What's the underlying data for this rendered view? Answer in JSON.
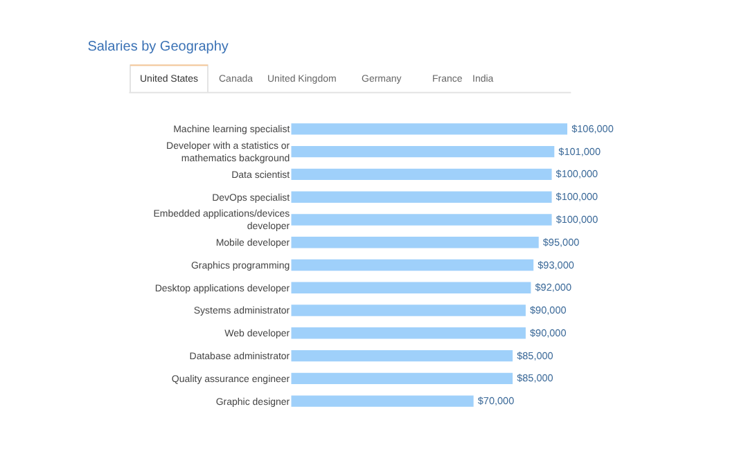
{
  "chart_data": {
    "type": "bar",
    "orientation": "horizontal",
    "title": "Salaries by Geography",
    "annotations": [
      "United States",
      "Canada",
      "United Kingdom",
      "Germany",
      "France",
      "India"
    ],
    "categories": [
      "Machine learning specialist",
      "Developer with a statistics or mathematics background",
      "Data scientist",
      "DevOps specialist",
      "Embedded applications/devices developer",
      "Mobile developer",
      "Graphics programming",
      "Desktop applications developer",
      "Systems administrator",
      "Web developer",
      "Database administrator",
      "Quality assurance engineer",
      "Graphic designer"
    ],
    "values": [
      106000,
      101000,
      100000,
      100000,
      100000,
      95000,
      93000,
      92000,
      90000,
      90000,
      85000,
      85000,
      70000
    ],
    "value_labels": [
      "$106,000",
      "$101,000",
      "$100,000",
      "$100,000",
      "$100,000",
      "$95,000",
      "$93,000",
      "$92,000",
      "$90,000",
      "$90,000",
      "$85,000",
      "$85,000",
      "$70,000"
    ],
    "color": "#9fd0fa",
    "xlim": [
      0,
      106000
    ],
    "tick_labels": false,
    "legend": false
  }
}
